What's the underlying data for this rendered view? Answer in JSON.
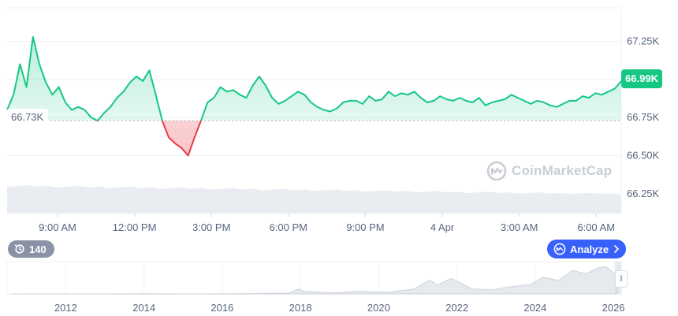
{
  "chart_data": {
    "type": "line",
    "series": [
      {
        "values": [
          66.8,
          66.9,
          67.1,
          66.95,
          67.28,
          67.1,
          66.98,
          66.9,
          66.95,
          66.85,
          66.8,
          66.82,
          66.8,
          66.75,
          66.73,
          66.78,
          66.82,
          66.88,
          66.92,
          66.98,
          67.02,
          66.99,
          67.06,
          66.9,
          66.73,
          66.62,
          66.58,
          66.55,
          66.5,
          66.62,
          66.73,
          66.85,
          66.88,
          66.95,
          66.92,
          66.93,
          66.9,
          66.88,
          66.96,
          67.02,
          66.96,
          66.88,
          66.84,
          66.86,
          66.89,
          66.92,
          66.9,
          66.85,
          66.82,
          66.8,
          66.79,
          66.81,
          66.85,
          66.86,
          66.86,
          66.84,
          66.89,
          66.86,
          66.87,
          66.92,
          66.89,
          66.91,
          66.9,
          66.92,
          66.88,
          66.85,
          66.86,
          66.89,
          66.87,
          66.86,
          66.88,
          66.86,
          66.85,
          66.88,
          66.83,
          66.85,
          66.86,
          66.87,
          66.9,
          66.88,
          66.86,
          66.84,
          66.86,
          66.85,
          66.83,
          66.82,
          66.84,
          66.86,
          66.86,
          66.89,
          66.88,
          66.91,
          66.9,
          66.92,
          66.94,
          66.99
        ]
      }
    ],
    "x_tick_labels": [
      "9:00 AM",
      "12:00 PM",
      "3:00 PM",
      "6:00 PM",
      "9:00 PM",
      "4 Apr",
      "3:00 AM",
      "6:00 AM"
    ],
    "y_tick_labels": [
      "67.25K",
      "67.00K",
      "66.75K",
      "66.50K",
      "66.25K"
    ],
    "y_ticks": [
      67.25,
      67.0,
      66.75,
      66.5,
      66.25
    ],
    "ylim": [
      66.12,
      67.47
    ],
    "reference_value": 66.73,
    "reference_label": "66.73K",
    "current_value": 66.99,
    "current_label": "66.99K",
    "up_color": "#16c784",
    "down_color": "#ea3943",
    "navigator_year_labels": [
      "2012",
      "2014",
      "2016",
      "2018",
      "2020",
      "2022",
      "2024",
      "2026"
    ],
    "navigator_years": [
      2012,
      2014,
      2016,
      2018,
      2020,
      2022,
      2024,
      2026
    ],
    "navigator_range": [
      2010.5,
      2026.2
    ],
    "navigator_series": [
      {
        "year": 2010.6,
        "value": 0
      },
      {
        "year": 2013.0,
        "value": 0.005
      },
      {
        "year": 2014.0,
        "value": 0.01
      },
      {
        "year": 2015.0,
        "value": 0.005
      },
      {
        "year": 2016.5,
        "value": 0.01
      },
      {
        "year": 2017.7,
        "value": 0.05
      },
      {
        "year": 2017.95,
        "value": 0.3
      },
      {
        "year": 2018.1,
        "value": 0.15
      },
      {
        "year": 2018.9,
        "value": 0.06
      },
      {
        "year": 2019.5,
        "value": 0.17
      },
      {
        "year": 2020.2,
        "value": 0.09
      },
      {
        "year": 2020.9,
        "value": 0.3
      },
      {
        "year": 2021.3,
        "value": 0.85
      },
      {
        "year": 2021.5,
        "value": 0.55
      },
      {
        "year": 2021.85,
        "value": 0.96
      },
      {
        "year": 2022.4,
        "value": 0.3
      },
      {
        "year": 2022.9,
        "value": 0.25
      },
      {
        "year": 2023.3,
        "value": 0.42
      },
      {
        "year": 2023.9,
        "value": 0.6
      },
      {
        "year": 2024.2,
        "value": 1.03
      },
      {
        "year": 2024.6,
        "value": 0.83
      },
      {
        "year": 2024.95,
        "value": 1.45
      },
      {
        "year": 2025.3,
        "value": 1.25
      },
      {
        "year": 2025.6,
        "value": 1.6
      },
      {
        "year": 2025.8,
        "value": 1.7
      },
      {
        "year": 2026.0,
        "value": 1.3
      },
      {
        "year": 2026.1,
        "value": 1.25
      }
    ]
  },
  "watermark_text": "CoinMarketCap",
  "history_label": "140",
  "analyze_label": "Analyze",
  "icons": {
    "history": "history-clock-icon",
    "analyze": "analyze-chart-icon",
    "chevron": "chevron-right-icon",
    "logo": "coinmarketcap-logo-icon",
    "handle": "range-handle-icon"
  }
}
